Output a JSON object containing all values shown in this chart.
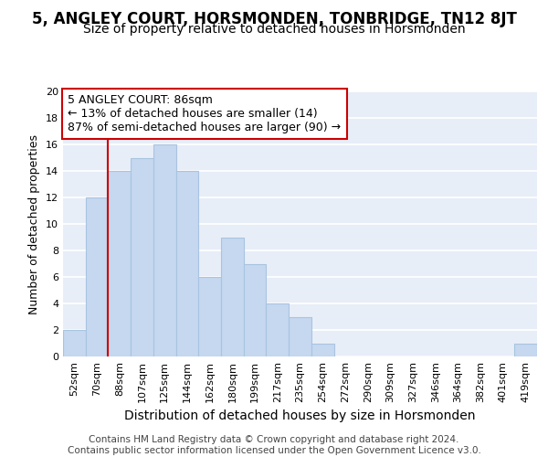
{
  "title": "5, ANGLEY COURT, HORSMONDEN, TONBRIDGE, TN12 8JT",
  "subtitle": "Size of property relative to detached houses in Horsmonden",
  "xlabel": "Distribution of detached houses by size in Horsmonden",
  "ylabel": "Number of detached properties",
  "categories": [
    "52sqm",
    "70sqm",
    "88sqm",
    "107sqm",
    "125sqm",
    "144sqm",
    "162sqm",
    "180sqm",
    "199sqm",
    "217sqm",
    "235sqm",
    "254sqm",
    "272sqm",
    "290sqm",
    "309sqm",
    "327sqm",
    "346sqm",
    "364sqm",
    "382sqm",
    "401sqm",
    "419sqm"
  ],
  "values": [
    2,
    12,
    14,
    15,
    16,
    14,
    6,
    9,
    7,
    4,
    3,
    1,
    0,
    0,
    0,
    0,
    0,
    0,
    0,
    0,
    1
  ],
  "bar_color": "#c5d8f0",
  "bar_edge_color": "#a8c4e0",
  "annotation_box_text": "5 ANGLEY COURT: 86sqm\n← 13% of detached houses are smaller (14)\n87% of semi-detached houses are larger (90) →",
  "annotation_box_color": "#ffffff",
  "annotation_box_edge_color": "#cc0000",
  "property_line_color": "#cc0000",
  "property_line_index": 2,
  "ylim": [
    0,
    20
  ],
  "yticks": [
    0,
    2,
    4,
    6,
    8,
    10,
    12,
    14,
    16,
    18,
    20
  ],
  "background_color": "#e8eef8",
  "grid_color": "#ffffff",
  "footer_text": "Contains HM Land Registry data © Crown copyright and database right 2024.\nContains public sector information licensed under the Open Government Licence v3.0.",
  "title_fontsize": 12,
  "subtitle_fontsize": 10,
  "xlabel_fontsize": 10,
  "ylabel_fontsize": 9,
  "annotation_fontsize": 9,
  "footer_fontsize": 7.5,
  "tick_fontsize": 8
}
